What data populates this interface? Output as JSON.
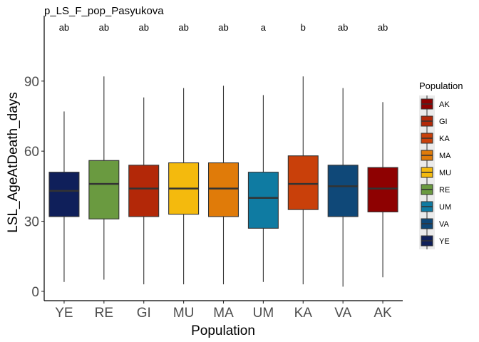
{
  "chart_data": {
    "type": "boxplot",
    "title": "p_LS_F_pop_Pasyukova",
    "xlabel": "Population",
    "ylabel": "LSL_AgeAtDeath_days",
    "y_ticks": [
      0,
      30,
      60,
      90
    ],
    "ylim": [
      -4,
      118
    ],
    "grid": false,
    "legend_position": "right",
    "legend_title": "Population",
    "categories": [
      "YE",
      "RE",
      "GI",
      "MU",
      "MA",
      "UM",
      "KA",
      "VA",
      "AK"
    ],
    "boxes": [
      {
        "name": "YE",
        "min": 4,
        "q1": 32,
        "median": 43,
        "q3": 51,
        "max": 77,
        "letter": "ab",
        "color": "#0f1f5a"
      },
      {
        "name": "RE",
        "min": 5,
        "q1": 31,
        "median": 46,
        "q3": 56,
        "max": 92,
        "letter": "ab",
        "color": "#6a9a40"
      },
      {
        "name": "GI",
        "min": 3,
        "q1": 32,
        "median": 44,
        "q3": 54,
        "max": 83,
        "letter": "ab",
        "color": "#b32808"
      },
      {
        "name": "MU",
        "min": 3,
        "q1": 33,
        "median": 44,
        "q3": 55,
        "max": 87,
        "letter": "ab",
        "color": "#f4ba0d"
      },
      {
        "name": "MA",
        "min": 3,
        "q1": 32,
        "median": 44,
        "q3": 55,
        "max": 88,
        "letter": "ab",
        "color": "#e07b09"
      },
      {
        "name": "UM",
        "min": 4,
        "q1": 27,
        "median": 40,
        "q3": 51,
        "max": 84,
        "letter": "a",
        "color": "#0f7ba2"
      },
      {
        "name": "KA",
        "min": 3,
        "q1": 35,
        "median": 46,
        "q3": 58,
        "max": 92,
        "letter": "b",
        "color": "#c9400a"
      },
      {
        "name": "VA",
        "min": 2,
        "q1": 32,
        "median": 45,
        "q3": 54,
        "max": 87,
        "letter": "ab",
        "color": "#0f4878"
      },
      {
        "name": "AK",
        "min": 6,
        "q1": 34,
        "median": 44,
        "q3": 53,
        "max": 81,
        "letter": "ab",
        "color": "#8e0101"
      }
    ],
    "legend": [
      {
        "label": "AK",
        "color": "#8e0101"
      },
      {
        "label": "GI",
        "color": "#b32808"
      },
      {
        "label": "KA",
        "color": "#c9400a"
      },
      {
        "label": "MA",
        "color": "#e07b09"
      },
      {
        "label": "MU",
        "color": "#f4ba0d"
      },
      {
        "label": "RE",
        "color": "#6a9a40"
      },
      {
        "label": "UM",
        "color": "#0f7ba2"
      },
      {
        "label": "VA",
        "color": "#0f4878"
      },
      {
        "label": "YE",
        "color": "#0f1f5a"
      }
    ]
  }
}
